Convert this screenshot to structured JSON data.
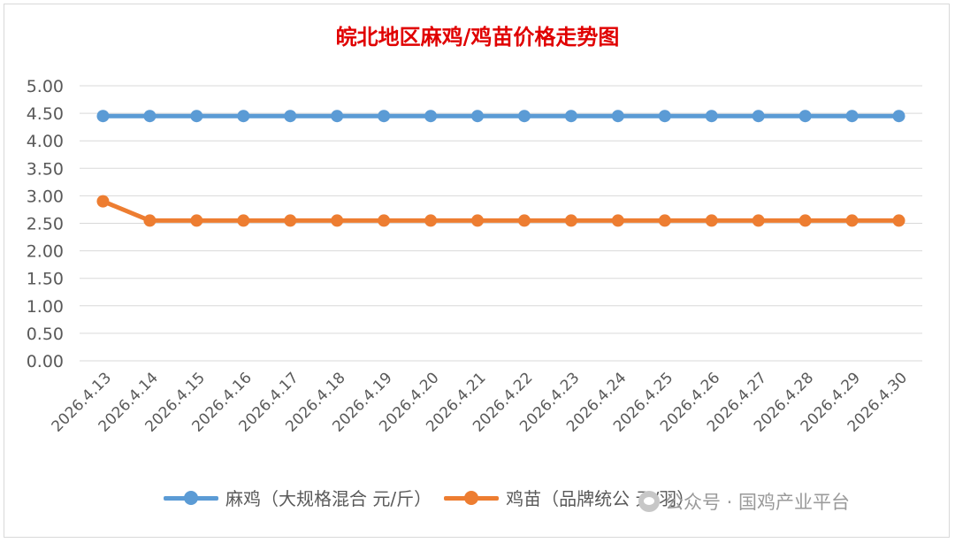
{
  "chart_data": {
    "type": "line",
    "title": "皖北地区麻鸡/鸡苗价格走势图",
    "categories": [
      "2026.4.13",
      "2026.4.14",
      "2026.4.15",
      "2026.4.16",
      "2026.4.17",
      "2026.4.18",
      "2026.4.19",
      "2026.4.20",
      "2026.4.21",
      "2026.4.22",
      "2026.4.23",
      "2026.4.24",
      "2026.4.25",
      "2026.4.26",
      "2026.4.27",
      "2026.4.28",
      "2026.4.29",
      "2026.4.30"
    ],
    "yticks": [
      "0.00",
      "0.50",
      "1.00",
      "1.50",
      "2.00",
      "2.50",
      "3.00",
      "3.50",
      "4.00",
      "4.50",
      "5.00"
    ],
    "ylim": [
      0,
      5
    ],
    "grid": true,
    "legend_position": "bottom",
    "series": [
      {
        "name": "麻鸡（大规格混合 元/斤）",
        "color": "#5b9bd5",
        "values": [
          4.45,
          4.45,
          4.45,
          4.45,
          4.45,
          4.45,
          4.45,
          4.45,
          4.45,
          4.45,
          4.45,
          4.45,
          4.45,
          4.45,
          4.45,
          4.45,
          4.45,
          4.45
        ]
      },
      {
        "name": "鸡苗（品牌统公 元/羽）",
        "color": "#ed7d31",
        "values": [
          2.9,
          2.55,
          2.55,
          2.55,
          2.55,
          2.55,
          2.55,
          2.55,
          2.55,
          2.55,
          2.55,
          2.55,
          2.55,
          2.55,
          2.55,
          2.55,
          2.55,
          2.55
        ]
      }
    ]
  },
  "watermark": {
    "text": "公众号 · 国鸡产业平台",
    "icon": "wechat-icon"
  }
}
